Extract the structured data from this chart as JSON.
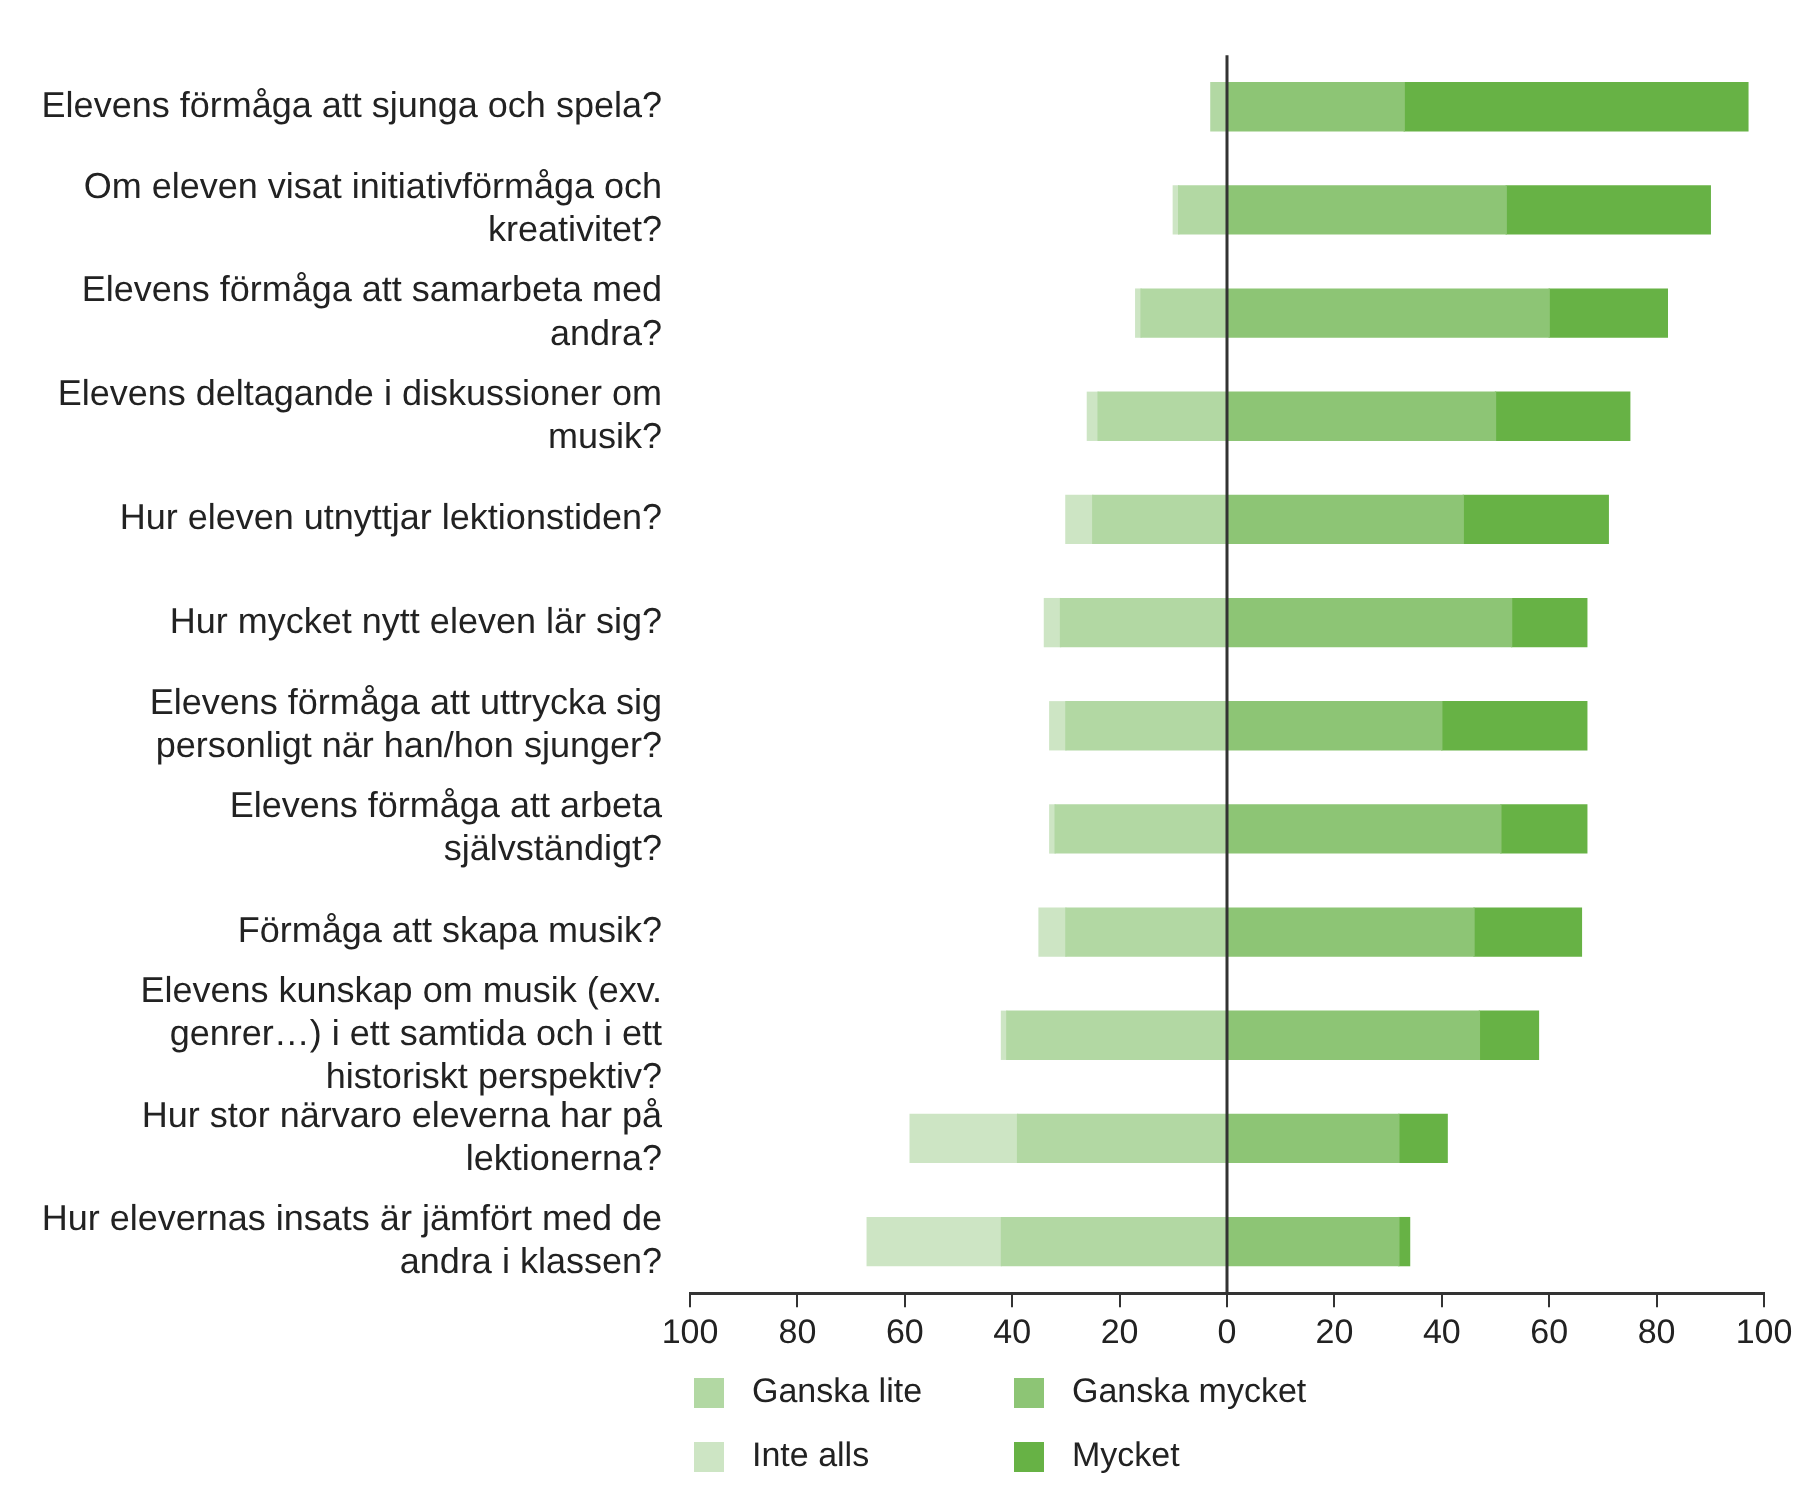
{
  "chart_data": {
    "type": "bar",
    "orientation": "horizontal",
    "stacked": true,
    "categories": [
      "Elevens förmåga att sjunga och spela?",
      "Om eleven visat initiativförmåga och kreativitet?",
      "Elevens förmåga att samarbeta med andra?",
      "Elevens deltagande i diskussioner om musik?",
      "Hur eleven utnyttjar lektionstiden?",
      "Hur mycket nytt eleven lär sig?",
      "Elevens förmåga att uttrycka sig personligt när han/hon sjunger?",
      "Elevens förmåga att arbeta självständigt?",
      "Förmåga att skapa musik?",
      "Elevens kunskap om musik (exv. genrer…) i ett samtida och i ett historiskt perspektiv?",
      "Hur stor närvaro eleverna har på lektionerna?",
      "Hur elevernas insats är jämfört med de andra i klassen?"
    ],
    "series": [
      {
        "name": "Ganska lite",
        "color": "#b2d8a3",
        "values": [
          -3,
          -9,
          -16,
          -24,
          -25,
          -31,
          -30,
          -32,
          -30,
          -41,
          -39,
          -42
        ]
      },
      {
        "name": "Inte alls",
        "color": "#cde5c4",
        "values": [
          null,
          -1,
          -1,
          -2,
          -5,
          -3,
          -3,
          -1,
          -5,
          -1,
          -20,
          -25
        ]
      },
      {
        "name": "Ganska mycket",
        "color": "#8dc575",
        "values": [
          33,
          52,
          60,
          50,
          44,
          53,
          40,
          51,
          46,
          47,
          32,
          32
        ]
      },
      {
        "name": "Mycket",
        "color": "#67b245",
        "values": [
          64,
          38,
          22,
          25,
          27,
          14,
          27,
          16,
          20,
          11,
          9,
          2
        ]
      }
    ],
    "xlim": [
      -100,
      100
    ],
    "xticks": [
      {
        "value": -100,
        "label": "100"
      },
      {
        "value": -80,
        "label": "80"
      },
      {
        "value": -60,
        "label": "60"
      },
      {
        "value": -40,
        "label": "40"
      },
      {
        "value": -20,
        "label": "20"
      },
      0,
      20,
      40,
      60,
      80,
      100
    ],
    "ref_lines": [
      {
        "axis": "x",
        "value": 0,
        "color": "#333333"
      }
    ],
    "grid": false,
    "legend": "bottom"
  }
}
